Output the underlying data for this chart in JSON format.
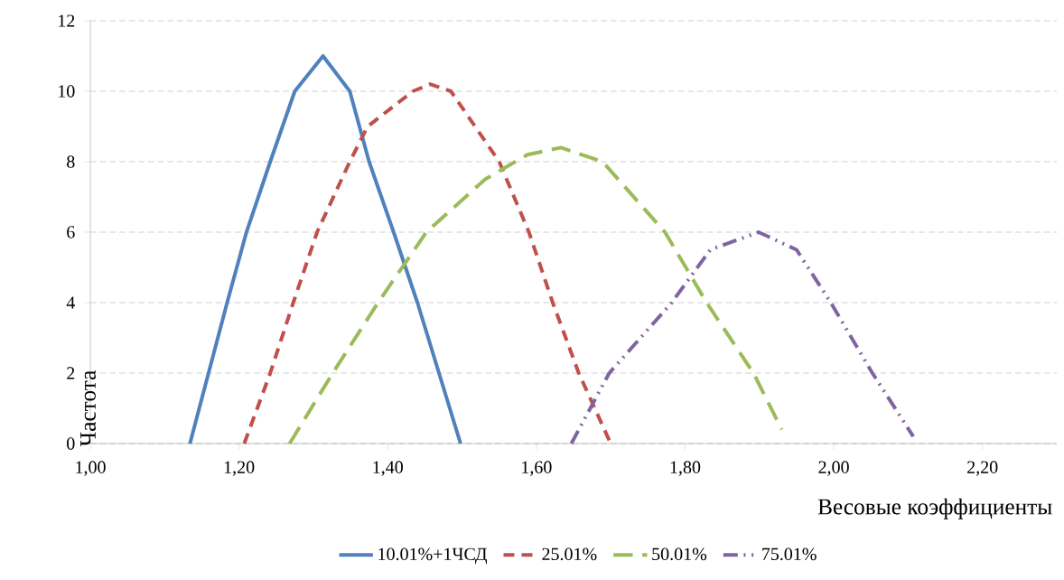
{
  "chart_data": {
    "type": "line",
    "xlabel": "Весовые коэффициенты",
    "ylabel": "Частота",
    "xlim": [
      1.0,
      2.3
    ],
    "ylim": [
      0,
      12
    ],
    "xticks": [
      {
        "value": 1.0,
        "label": "1,00"
      },
      {
        "value": 1.2,
        "label": "1,20"
      },
      {
        "value": 1.4,
        "label": "1,40"
      },
      {
        "value": 1.6,
        "label": "1,60"
      },
      {
        "value": 1.8,
        "label": "1,80"
      },
      {
        "value": 2.0,
        "label": "2,00"
      },
      {
        "value": 2.2,
        "label": "2,20"
      }
    ],
    "yticks": [
      0,
      2,
      4,
      6,
      8,
      10,
      12
    ],
    "grid": "y",
    "legend": "bottom",
    "series": [
      {
        "name": "10.01%+1ЧСД",
        "color": "#4f81bd",
        "line_style": "solid",
        "x": [
          1.134,
          1.159,
          1.184,
          1.21,
          1.242,
          1.275,
          1.313,
          1.349,
          1.375,
          1.408,
          1.44,
          1.469,
          1.498
        ],
        "values": [
          0,
          2,
          4,
          6,
          8,
          10,
          11,
          10,
          8,
          6,
          4,
          2,
          0
        ]
      },
      {
        "name": "25.01%",
        "color": "#c0504d",
        "line_style": "dashed",
        "x": [
          1.207,
          1.242,
          1.273,
          1.305,
          1.349,
          1.373,
          1.434,
          1.457,
          1.485,
          1.55,
          1.59,
          1.622,
          1.657,
          1.7
        ],
        "values": [
          0,
          2,
          4,
          6,
          8,
          9,
          10,
          10.2,
          10,
          8,
          6,
          4,
          2,
          0
        ]
      },
      {
        "name": "50.01%",
        "color": "#9bbb59",
        "line_style": "dashed",
        "x": [
          1.268,
          1.326,
          1.387,
          1.452,
          1.531,
          1.588,
          1.633,
          1.689,
          1.773,
          1.829,
          1.892,
          1.93
        ],
        "values": [
          0,
          2,
          4,
          6,
          7.5,
          8.2,
          8.4,
          8,
          6,
          4,
          2,
          0.4
        ]
      },
      {
        "name": "75.01%",
        "color": "#8064a2",
        "line_style": "dashed",
        "x": [
          1.647,
          1.698,
          1.782,
          1.834,
          1.899,
          1.95,
          1.996,
          2.052,
          2.107
        ],
        "values": [
          0,
          2,
          4,
          5.5,
          6,
          5.5,
          4,
          2,
          0.2
        ]
      }
    ]
  }
}
